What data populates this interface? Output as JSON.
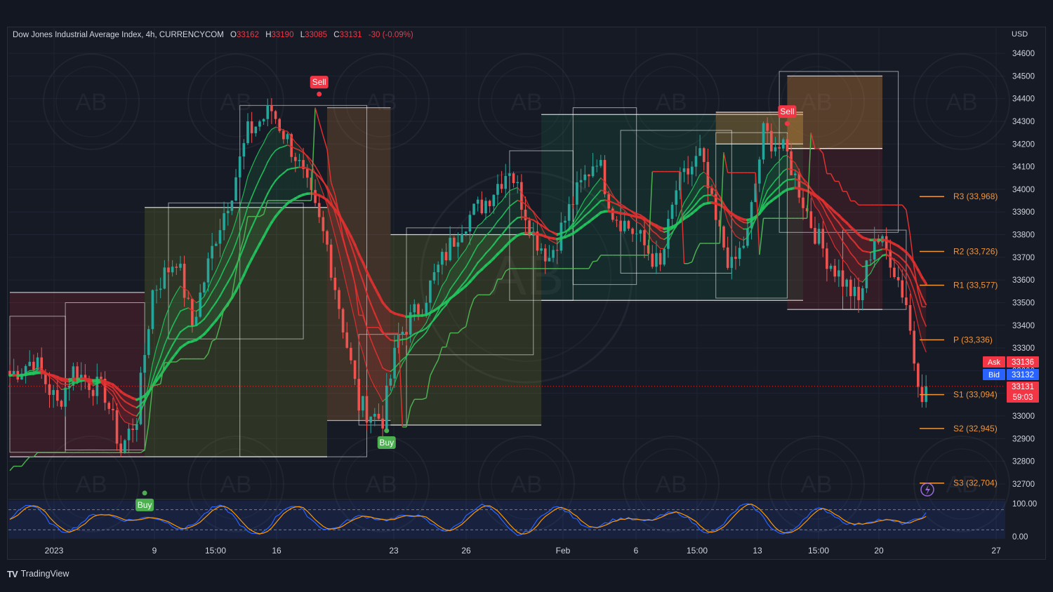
{
  "header": {
    "symbol": "Dow Jones Industrial Average Index, 4h, CURRENCYCOM",
    "open_key": "O",
    "open": "33162",
    "high_key": "H",
    "high": "33190",
    "low_key": "L",
    "low": "33085",
    "close_key": "C",
    "close": "33131",
    "change": "-30 (-0.09%)"
  },
  "currency": "USD",
  "brand": {
    "logo": "TV",
    "name": "TradingView"
  },
  "watermark_text": "AB",
  "colors": {
    "up": "#26a69a",
    "down": "#ef5350",
    "bull": "#22c55e",
    "bear": "#e03030",
    "orange": "#f0953a",
    "stoch_k": "#2962ff",
    "stoch_d": "#ff9800"
  },
  "chart_data": {
    "type": "candlestick",
    "yaxis": {
      "ticks": [
        32700,
        32800,
        32900,
        33000,
        33100,
        33200,
        33300,
        33400,
        33500,
        33600,
        33700,
        33800,
        33900,
        34000,
        34100,
        34200,
        34300,
        34400,
        34500,
        34600
      ],
      "range": [
        32650,
        34680
      ]
    },
    "xaxis": {
      "labels": [
        "2023",
        "9",
        "15:00",
        "16",
        "23",
        "26",
        "Feb",
        "6",
        "15:00",
        "13",
        "15:00",
        "20",
        "27"
      ]
    },
    "price_labels": {
      "ask_label": "Ask",
      "ask": "33136",
      "bid_label": "Bid",
      "bid": "33132",
      "last": "33131",
      "countdown": "59:03"
    },
    "pivots": [
      {
        "label": "R3 (33,968)",
        "value": 33968
      },
      {
        "label": "R2 (33,726)",
        "value": 33726
      },
      {
        "label": "R1 (33,577)",
        "value": 33577
      },
      {
        "label": "P (33,336)",
        "value": 33336
      },
      {
        "label": "S1 (33,094)",
        "value": 33094
      },
      {
        "label": "S2 (32,945)",
        "value": 32945
      },
      {
        "label": "S3 (32,704)",
        "value": 32704
      }
    ],
    "signals": [
      {
        "type": "buy",
        "text": "Buy",
        "bar": 34,
        "price": 32660
      },
      {
        "type": "sell",
        "text": "Sell",
        "bar": 78,
        "price": 34420
      },
      {
        "type": "buy",
        "text": "Buy",
        "bar": 95,
        "price": 32935
      },
      {
        "type": "sell",
        "text": "Sell",
        "bar": 196,
        "price": 34290
      }
    ],
    "oscillator": {
      "ticks": [
        "100.00",
        "0.00"
      ],
      "upper_band": 80,
      "lower_band": 20
    }
  }
}
